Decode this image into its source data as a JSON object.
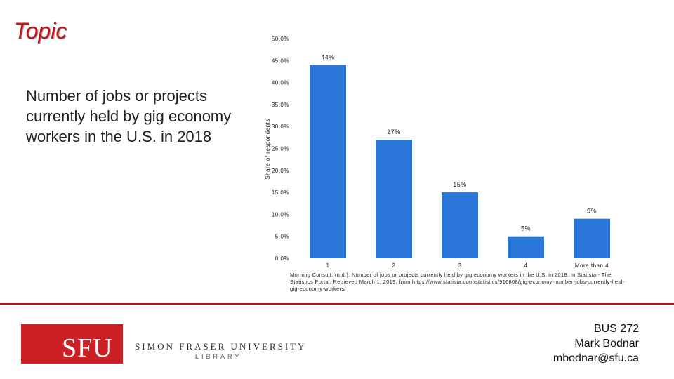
{
  "slide": {
    "topic": "Topic",
    "title": "Number of jobs or projects currently held by gig economy workers in the U.S. in 2018",
    "source": "Morning Consult. (n.d.). Number of jobs or projects currently held by gig economy workers in the U.S. in 2018. In Statista - The Statistics Portal. Retrieved March 1, 2019, from https://www.statista.com/statistics/916808/gig-economy-number-jobs-currently-held-gig-economy-workers/",
    "course": "BUS 272",
    "author": "Mark Bodnar",
    "email": "mbodnar@sfu.ca",
    "logo": {
      "mark": "SFU",
      "name": "SIMON FRASER UNIVERSITY",
      "sub": "LIBRARY",
      "color": "#cc1f26"
    }
  },
  "chart_data": {
    "type": "bar",
    "categories": [
      "1",
      "2",
      "3",
      "4",
      "More than 4"
    ],
    "values": [
      44,
      27,
      15,
      5,
      9
    ],
    "data_labels": [
      "44%",
      "27%",
      "15%",
      "5%",
      "9%"
    ],
    "ylabel": "Share of respondents",
    "ylim": [
      0,
      50
    ],
    "yticks": [
      "0.0%",
      "5.0%",
      "10.0%",
      "15.0%",
      "20.0%",
      "25.0%",
      "30.0%",
      "35.0%",
      "40.0%",
      "45.0%",
      "50.0%"
    ],
    "bar_color": "#2a76d8",
    "grid": false
  }
}
